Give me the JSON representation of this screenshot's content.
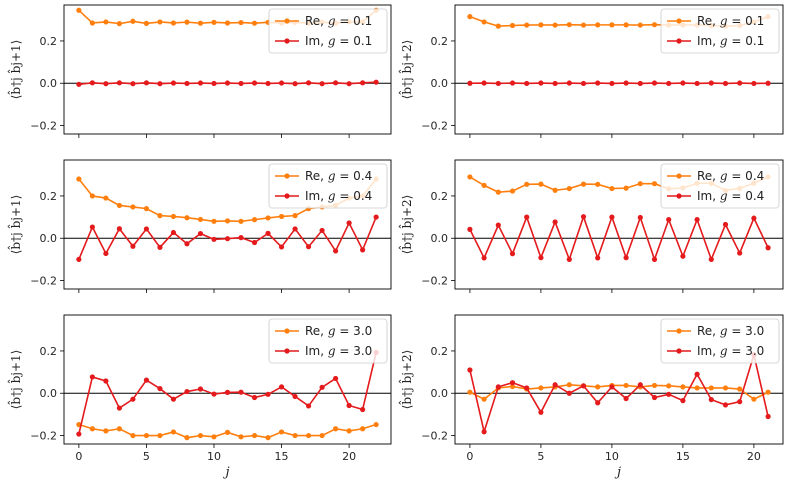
{
  "chart_data": [
    {
      "type": "line",
      "row": 0,
      "col": 0,
      "ylabel": "⟨b̂†j b̂j+1⟩",
      "xlabel": "",
      "xlim": [
        -1.1,
        23.1
      ],
      "ylim": [
        -0.24,
        0.37
      ],
      "yticks": [
        -0.2,
        0.0,
        0.2
      ],
      "xticks": [
        0,
        5,
        10,
        15,
        20
      ],
      "show_xtick_labels": false,
      "legend": "top-right",
      "series": [
        {
          "name": "Re, g = 0.1",
          "label_main": "Re, ",
          "label_g": "g",
          "label_val": " = 0.1",
          "color": "#ff7f0e",
          "x": [
            0,
            1,
            2,
            3,
            4,
            5,
            6,
            7,
            8,
            9,
            10,
            11,
            12,
            13,
            14,
            15,
            16,
            17,
            18,
            19,
            20,
            21,
            22
          ],
          "values": [
            0.345,
            0.285,
            0.29,
            0.282,
            0.293,
            0.283,
            0.29,
            0.285,
            0.289,
            0.284,
            0.288,
            0.285,
            0.287,
            0.284,
            0.288,
            0.285,
            0.288,
            0.284,
            0.289,
            0.285,
            0.29,
            0.29,
            0.345
          ]
        },
        {
          "name": "Im, g = 0.1",
          "label_main": "Im, ",
          "label_g": "g",
          "label_val": " = 0.1",
          "color": "#e41a1c",
          "x": [
            0,
            1,
            2,
            3,
            4,
            5,
            6,
            7,
            8,
            9,
            10,
            11,
            12,
            13,
            14,
            15,
            16,
            17,
            18,
            19,
            20,
            21,
            22
          ],
          "values": [
            -0.005,
            0.002,
            -0.002,
            0.002,
            -0.002,
            0.002,
            -0.002,
            0.001,
            -0.001,
            0.001,
            -0.001,
            0.001,
            -0.001,
            0.001,
            -0.001,
            0.001,
            -0.002,
            0.002,
            -0.002,
            0.002,
            -0.002,
            0.002,
            0.005
          ]
        }
      ]
    },
    {
      "type": "line",
      "row": 0,
      "col": 1,
      "ylabel": "⟨b̂†j b̂j+2⟩",
      "xlabel": "",
      "xlim": [
        -1.05,
        22.05
      ],
      "ylim": [
        -0.24,
        0.37
      ],
      "yticks": [
        -0.2,
        0.0,
        0.2
      ],
      "xticks": [
        0,
        5,
        10,
        15,
        20
      ],
      "show_xtick_labels": false,
      "legend": "top-right",
      "series": [
        {
          "name": "Re, g = 0.1",
          "label_main": "Re, ",
          "label_g": "g",
          "label_val": " = 0.1",
          "color": "#ff7f0e",
          "x": [
            0,
            1,
            2,
            3,
            4,
            5,
            6,
            7,
            8,
            9,
            10,
            11,
            12,
            13,
            14,
            15,
            16,
            17,
            18,
            19,
            20,
            21
          ],
          "values": [
            0.315,
            0.29,
            0.27,
            0.273,
            0.275,
            0.276,
            0.275,
            0.277,
            0.275,
            0.276,
            0.276,
            0.276,
            0.275,
            0.277,
            0.275,
            0.276,
            0.275,
            0.273,
            0.27,
            0.273,
            0.29,
            0.315
          ]
        },
        {
          "name": "Im, g = 0.1",
          "label_main": "Im, ",
          "label_g": "g",
          "label_val": " = 0.1",
          "color": "#e41a1c",
          "x": [
            0,
            1,
            2,
            3,
            4,
            5,
            6,
            7,
            8,
            9,
            10,
            11,
            12,
            13,
            14,
            15,
            16,
            17,
            18,
            19,
            20,
            21
          ],
          "values": [
            0.0,
            0.001,
            -0.001,
            0.001,
            -0.001,
            0.001,
            -0.001,
            0.001,
            -0.001,
            0.001,
            -0.001,
            0.001,
            -0.001,
            0.001,
            -0.001,
            0.001,
            -0.001,
            0.001,
            -0.001,
            0.001,
            -0.001,
            0.0
          ]
        }
      ]
    },
    {
      "type": "line",
      "row": 1,
      "col": 0,
      "ylabel": "⟨b̂†j b̂j+1⟩",
      "xlabel": "",
      "xlim": [
        -1.1,
        23.1
      ],
      "ylim": [
        -0.24,
        0.37
      ],
      "yticks": [
        -0.2,
        0.0,
        0.2
      ],
      "xticks": [
        0,
        5,
        10,
        15,
        20
      ],
      "show_xtick_labels": false,
      "legend": "top-right",
      "series": [
        {
          "name": "Re, g = 0.4",
          "label_main": "Re, ",
          "label_g": "g",
          "label_val": " = 0.4",
          "color": "#ff7f0e",
          "x": [
            0,
            1,
            2,
            3,
            4,
            5,
            6,
            7,
            8,
            9,
            10,
            11,
            12,
            13,
            14,
            15,
            16,
            17,
            18,
            19,
            20,
            21,
            22
          ],
          "values": [
            0.28,
            0.2,
            0.19,
            0.155,
            0.148,
            0.14,
            0.107,
            0.103,
            0.097,
            0.089,
            0.08,
            0.082,
            0.08,
            0.088,
            0.096,
            0.103,
            0.107,
            0.14,
            0.148,
            0.155,
            0.19,
            0.2,
            0.28
          ]
        },
        {
          "name": "Im, g = 0.4",
          "label_main": "Im, ",
          "label_g": "g",
          "label_val": " = 0.4",
          "color": "#e41a1c",
          "x": [
            0,
            1,
            2,
            3,
            4,
            5,
            6,
            7,
            8,
            9,
            10,
            11,
            12,
            13,
            14,
            15,
            16,
            17,
            18,
            19,
            20,
            21,
            22
          ],
          "values": [
            -0.1,
            0.053,
            -0.072,
            0.045,
            -0.038,
            0.044,
            -0.043,
            0.027,
            -0.026,
            0.022,
            -0.005,
            -0.002,
            0.003,
            -0.02,
            0.023,
            -0.041,
            0.044,
            -0.04,
            0.037,
            -0.06,
            0.072,
            -0.055,
            0.1
          ]
        }
      ]
    },
    {
      "type": "line",
      "row": 1,
      "col": 1,
      "ylabel": "⟨b̂†j b̂j+2⟩",
      "xlabel": "",
      "xlim": [
        -1.05,
        22.05
      ],
      "ylim": [
        -0.24,
        0.37
      ],
      "yticks": [
        -0.2,
        0.0,
        0.2
      ],
      "xticks": [
        0,
        5,
        10,
        15,
        20
      ],
      "show_xtick_labels": false,
      "legend": "top-right",
      "series": [
        {
          "name": "Re, g = 0.4",
          "label_main": "Re, ",
          "label_g": "g",
          "label_val": " = 0.4",
          "color": "#ff7f0e",
          "x": [
            0,
            1,
            2,
            3,
            4,
            5,
            6,
            7,
            8,
            9,
            10,
            11,
            12,
            13,
            14,
            15,
            16,
            17,
            18,
            19,
            20,
            21
          ],
          "values": [
            0.29,
            0.25,
            0.218,
            0.223,
            0.255,
            0.256,
            0.227,
            0.235,
            0.256,
            0.255,
            0.235,
            0.237,
            0.258,
            0.258,
            0.234,
            0.238,
            0.26,
            0.26,
            0.226,
            0.236,
            0.26,
            0.29
          ]
        },
        {
          "name": "Im, g = 0.4",
          "label_main": "Im, ",
          "label_g": "g",
          "label_val": " = 0.4",
          "color": "#e41a1c",
          "x": [
            0,
            1,
            2,
            3,
            4,
            5,
            6,
            7,
            8,
            9,
            10,
            11,
            12,
            13,
            14,
            15,
            16,
            17,
            18,
            19,
            20,
            21
          ],
          "values": [
            0.042,
            -0.093,
            0.062,
            -0.073,
            0.1,
            -0.092,
            0.077,
            -0.1,
            0.102,
            -0.093,
            0.1,
            -0.092,
            0.098,
            -0.1,
            0.088,
            -0.085,
            0.088,
            -0.1,
            0.065,
            -0.07,
            0.095,
            -0.045
          ]
        }
      ]
    },
    {
      "type": "line",
      "row": 2,
      "col": 0,
      "ylabel": "⟨b̂†j b̂j+1⟩",
      "xlabel": "j",
      "xlim": [
        -1.1,
        23.1
      ],
      "ylim": [
        -0.24,
        0.37
      ],
      "yticks": [
        -0.2,
        0.0,
        0.2
      ],
      "xticks": [
        0,
        5,
        10,
        15,
        20
      ],
      "show_xtick_labels": true,
      "legend": "top-right",
      "series": [
        {
          "name": "Re, g = 3.0",
          "label_main": "Re, ",
          "label_g": "g",
          "label_val": " = 3.0",
          "color": "#ff7f0e",
          "x": [
            0,
            1,
            2,
            3,
            4,
            5,
            6,
            7,
            8,
            9,
            10,
            11,
            12,
            13,
            14,
            15,
            16,
            17,
            18,
            19,
            20,
            21,
            22
          ],
          "values": [
            -0.148,
            -0.168,
            -0.178,
            -0.168,
            -0.2,
            -0.2,
            -0.2,
            -0.183,
            -0.21,
            -0.2,
            -0.206,
            -0.185,
            -0.206,
            -0.2,
            -0.21,
            -0.183,
            -0.2,
            -0.2,
            -0.2,
            -0.168,
            -0.178,
            -0.168,
            -0.148
          ]
        },
        {
          "name": "Im, g = 3.0",
          "label_main": "Im, ",
          "label_g": "g",
          "label_val": " = 3.0",
          "color": "#e41a1c",
          "x": [
            0,
            1,
            2,
            3,
            4,
            5,
            6,
            7,
            8,
            9,
            10,
            11,
            12,
            13,
            14,
            15,
            16,
            17,
            18,
            19,
            20,
            21,
            22
          ],
          "values": [
            -0.193,
            0.077,
            0.058,
            -0.07,
            -0.028,
            0.062,
            0.022,
            -0.028,
            0.008,
            0.02,
            -0.004,
            0.004,
            0.005,
            -0.02,
            -0.005,
            0.03,
            -0.015,
            -0.06,
            0.028,
            0.07,
            -0.058,
            -0.077,
            0.193
          ]
        }
      ]
    },
    {
      "type": "line",
      "row": 2,
      "col": 1,
      "ylabel": "⟨b̂†j b̂j+2⟩",
      "xlabel": "j",
      "xlim": [
        -1.05,
        22.05
      ],
      "ylim": [
        -0.24,
        0.37
      ],
      "yticks": [
        -0.2,
        0.0,
        0.2
      ],
      "xticks": [
        0,
        5,
        10,
        15,
        20
      ],
      "show_xtick_labels": true,
      "legend": "top-right",
      "series": [
        {
          "name": "Re, g = 3.0",
          "label_main": "Re, ",
          "label_g": "g",
          "label_val": " = 3.0",
          "color": "#ff7f0e",
          "x": [
            0,
            1,
            2,
            3,
            4,
            5,
            6,
            7,
            8,
            9,
            10,
            11,
            12,
            13,
            14,
            15,
            16,
            17,
            18,
            19,
            20,
            21
          ],
          "values": [
            0.005,
            -0.028,
            0.025,
            0.032,
            0.02,
            0.025,
            0.03,
            0.04,
            0.035,
            0.03,
            0.037,
            0.037,
            0.03,
            0.037,
            0.035,
            0.03,
            0.025,
            0.025,
            0.025,
            0.02,
            -0.028,
            0.005
          ]
        },
        {
          "name": "Im, g = 3.0",
          "label_main": "Im, ",
          "label_g": "g",
          "label_val": " = 3.0",
          "color": "#e41a1c",
          "x": [
            0,
            1,
            2,
            3,
            4,
            5,
            6,
            7,
            8,
            9,
            10,
            11,
            12,
            13,
            14,
            15,
            16,
            17,
            18,
            19,
            20,
            21
          ],
          "values": [
            0.11,
            -0.182,
            0.03,
            0.05,
            0.025,
            -0.09,
            0.04,
            0.0,
            0.035,
            -0.045,
            0.03,
            -0.025,
            0.04,
            -0.02,
            -0.005,
            -0.035,
            0.09,
            -0.03,
            -0.055,
            -0.04,
            0.182,
            -0.11
          ]
        }
      ]
    }
  ]
}
